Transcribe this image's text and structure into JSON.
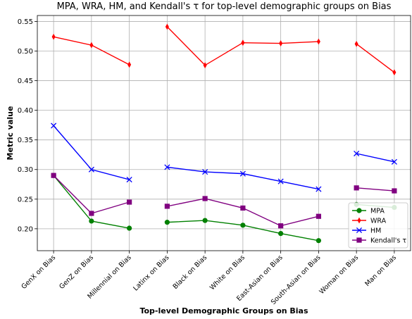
{
  "chart_data": {
    "type": "line",
    "title": "MPA, WRA, HM, and Kendall's τ for top-level demographic groups on Bias",
    "xlabel": "Top-level Demographic Groups on Bias",
    "ylabel": "Metric value",
    "categories": [
      "GenX on Bias",
      "GenZ on Bias",
      "Millennial on Bias",
      "Latinx on Bias",
      "Black on Bias",
      "White on Bias",
      "East-Asian on Bias",
      "South-Asian on Bias",
      "Woman on Bias",
      "Man on Bias"
    ],
    "line_breaks_before": [
      3,
      8
    ],
    "series": [
      {
        "name": "MPA",
        "color": "#008000",
        "marker": "circle",
        "values": [
          0.29,
          0.213,
          0.201,
          0.211,
          0.214,
          0.206,
          0.192,
          0.18,
          0.241,
          0.236
        ]
      },
      {
        "name": "WRA",
        "color": "#ff0000",
        "marker": "diamond",
        "values": [
          0.524,
          0.51,
          0.477,
          0.541,
          0.476,
          0.514,
          0.513,
          0.516,
          0.512,
          0.464
        ]
      },
      {
        "name": "HM",
        "color": "#0000ff",
        "marker": "x",
        "values": [
          0.374,
          0.3,
          0.283,
          0.304,
          0.296,
          0.293,
          0.28,
          0.267,
          0.327,
          0.313
        ]
      },
      {
        "name": "Kendall's τ",
        "color": "#800080",
        "marker": "square",
        "values": [
          0.29,
          0.226,
          0.245,
          0.238,
          0.251,
          0.235,
          0.205,
          0.221,
          0.269,
          0.264
        ]
      }
    ],
    "ylim": [
      0.163,
      0.56
    ],
    "yticks": [
      {
        "value": 0.2,
        "label": "0.20"
      },
      {
        "value": 0.25,
        "label": "0.25"
      },
      {
        "value": 0.3,
        "label": "0.30"
      },
      {
        "value": 0.35,
        "label": "0.35"
      },
      {
        "value": 0.4,
        "label": "0.40"
      },
      {
        "value": 0.45,
        "label": "0.45"
      },
      {
        "value": 0.5,
        "label": "0.50"
      },
      {
        "value": 0.55,
        "label": "0.55"
      }
    ],
    "grid": true,
    "legend": "lower right"
  }
}
